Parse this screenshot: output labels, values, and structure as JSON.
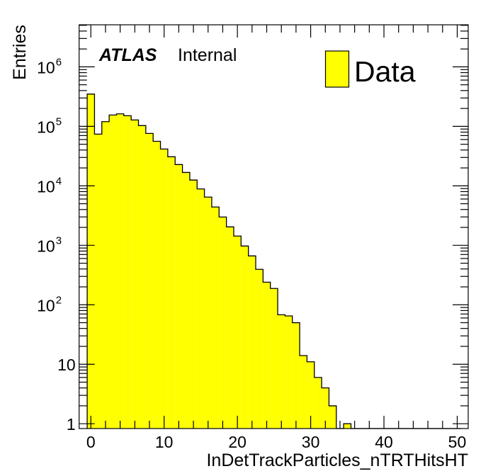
{
  "chart_data": {
    "type": "bar",
    "subtype": "histogram",
    "title": "",
    "xlabel": "InDetTrackParticles_nTRTHitsHT",
    "ylabel": "Entries",
    "yscale": "log",
    "xlim": [
      -1.6,
      51.5
    ],
    "ylim": [
      0.83,
      5100000
    ],
    "bin_width": 1,
    "bin_start": -0.5,
    "x_ticks": [
      0,
      10,
      20,
      30,
      40,
      50
    ],
    "x_tick_labels": [
      "0",
      "10",
      "20",
      "30",
      "40",
      "50"
    ],
    "y_ticks": [
      1,
      10,
      100,
      1000,
      10000,
      100000,
      1000000
    ],
    "y_tick_labels": [
      {
        "base": "1",
        "exp": ""
      },
      {
        "base": "10",
        "exp": ""
      },
      {
        "base": "10",
        "exp": "2"
      },
      {
        "base": "10",
        "exp": "3"
      },
      {
        "base": "10",
        "exp": "4"
      },
      {
        "base": "10",
        "exp": "5"
      },
      {
        "base": "10",
        "exp": "6"
      }
    ],
    "series": [
      {
        "name": "Data",
        "color": "#ffff00",
        "edge_color": "#000000",
        "values": [
          349000,
          74000,
          120000,
          155000,
          162000,
          151000,
          128000,
          103000,
          76000,
          56000,
          41600,
          30800,
          22800,
          16800,
          12500,
          8870,
          6460,
          4400,
          2990,
          2040,
          1430,
          973,
          663,
          394,
          240,
          188,
          68,
          65,
          50,
          14,
          11,
          6,
          4,
          2,
          0,
          1,
          0,
          0,
          0,
          0,
          0,
          0,
          0,
          0,
          0,
          0,
          0,
          0,
          0,
          0,
          0
        ]
      }
    ],
    "legend": {
      "position": "top-right",
      "entries": [
        "Data"
      ]
    },
    "annotations": {
      "experiment": "ATLAS",
      "status": "Internal"
    },
    "grid": false
  }
}
